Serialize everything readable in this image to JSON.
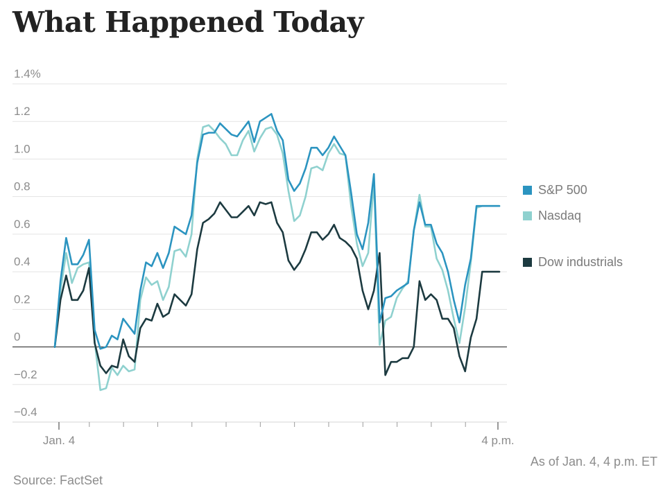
{
  "chart_data": {
    "type": "line",
    "title": "What Happened Today",
    "note": "As of Jan. 4, 4 p.m. ET",
    "source": "Source: FactSet",
    "ylim": [
      -0.4,
      1.4
    ],
    "y_ticks": [
      {
        "value": 1.4,
        "label": "1.4%"
      },
      {
        "value": 1.2,
        "label": "1.2"
      },
      {
        "value": 1.0,
        "label": "1.0"
      },
      {
        "value": 0.8,
        "label": "0.8"
      },
      {
        "value": 0.6,
        "label": "0.6"
      },
      {
        "value": 0.4,
        "label": "0.4"
      },
      {
        "value": 0.2,
        "label": "0.2"
      },
      {
        "value": 0,
        "label": "0"
      },
      {
        "value": -0.2,
        "label": "−0.2"
      },
      {
        "value": -0.4,
        "label": "−0.4"
      }
    ],
    "x_range": [
      0,
      78
    ],
    "x_ticks": [
      {
        "value": 0,
        "label": "Jan. 4"
      },
      {
        "value": 78,
        "label": "4 p.m."
      }
    ],
    "x_minor_ticks": [
      6,
      12,
      18,
      24,
      30,
      36,
      42,
      48,
      54,
      60,
      66,
      72
    ],
    "grid": true,
    "legend_position": "right",
    "series": [
      {
        "name": "Nasdaq",
        "color": "#8fd1cf",
        "x": [
          0,
          1,
          2,
          3,
          4,
          5,
          6,
          7,
          8,
          9,
          10,
          11,
          12,
          13,
          14,
          15,
          16,
          17,
          18,
          19,
          20,
          21,
          22,
          23,
          24,
          25,
          26,
          27,
          28,
          29,
          30,
          31,
          32,
          33,
          34,
          35,
          36,
          37,
          38,
          39,
          40,
          41,
          42,
          43,
          44,
          45,
          46,
          47,
          48,
          49,
          50,
          51,
          52,
          53,
          54,
          55,
          56,
          57,
          58,
          59,
          60,
          61,
          62,
          63,
          64,
          65,
          66,
          67,
          68,
          69,
          70,
          71,
          72,
          73,
          74,
          75,
          76,
          77,
          78
        ],
        "y": [
          0.0,
          0.3,
          0.5,
          0.34,
          0.42,
          0.44,
          0.45,
          0.03,
          -0.23,
          -0.22,
          -0.11,
          -0.15,
          -0.1,
          -0.13,
          -0.12,
          0.25,
          0.37,
          0.33,
          0.35,
          0.25,
          0.32,
          0.51,
          0.52,
          0.48,
          0.6,
          1.0,
          1.17,
          1.18,
          1.15,
          1.11,
          1.08,
          1.02,
          1.02,
          1.1,
          1.15,
          1.04,
          1.11,
          1.16,
          1.17,
          1.13,
          1.03,
          0.83,
          0.67,
          0.7,
          0.8,
          0.95,
          0.96,
          0.94,
          1.03,
          1.08,
          1.03,
          1.02,
          0.75,
          0.55,
          0.43,
          0.5,
          0.88,
          0.01,
          0.14,
          0.16,
          0.26,
          0.31,
          0.35,
          0.62,
          0.81,
          0.64,
          0.64,
          0.47,
          0.41,
          0.3,
          0.15,
          0.02,
          0.21,
          0.45,
          0.74,
          0.75,
          0.75,
          0.75,
          0.75
        ]
      },
      {
        "name": "Dow industrials",
        "color": "#1c3a40",
        "x": [
          0,
          1,
          2,
          3,
          4,
          5,
          6,
          7,
          8,
          9,
          10,
          11,
          12,
          13,
          14,
          15,
          16,
          17,
          18,
          19,
          20,
          21,
          22,
          23,
          24,
          25,
          26,
          27,
          28,
          29,
          30,
          31,
          32,
          33,
          34,
          35,
          36,
          37,
          38,
          39,
          40,
          41,
          42,
          43,
          44,
          45,
          46,
          47,
          48,
          49,
          50,
          51,
          52,
          53,
          54,
          55,
          56,
          57,
          58,
          59,
          60,
          61,
          62,
          63,
          64,
          65,
          66,
          67,
          68,
          69,
          70,
          71,
          72,
          73,
          74,
          75,
          76,
          77,
          78
        ],
        "y": [
          0.0,
          0.25,
          0.38,
          0.25,
          0.25,
          0.3,
          0.42,
          0.02,
          -0.1,
          -0.14,
          -0.1,
          -0.11,
          0.04,
          -0.05,
          -0.08,
          0.1,
          0.15,
          0.14,
          0.23,
          0.16,
          0.18,
          0.28,
          0.25,
          0.22,
          0.28,
          0.52,
          0.66,
          0.68,
          0.71,
          0.77,
          0.73,
          0.69,
          0.69,
          0.72,
          0.75,
          0.7,
          0.77,
          0.76,
          0.77,
          0.66,
          0.61,
          0.46,
          0.41,
          0.45,
          0.52,
          0.61,
          0.61,
          0.57,
          0.6,
          0.65,
          0.58,
          0.56,
          0.53,
          0.47,
          0.3,
          0.2,
          0.3,
          0.5,
          -0.15,
          -0.08,
          -0.08,
          -0.06,
          -0.06,
          0.0,
          0.35,
          0.25,
          0.28,
          0.25,
          0.15,
          0.15,
          0.1,
          -0.05,
          -0.13,
          0.05,
          0.15,
          0.4,
          0.4,
          0.4,
          0.4
        ]
      },
      {
        "name": "S&P 500",
        "color": "#2b94c0",
        "x": [
          0,
          1,
          2,
          3,
          4,
          5,
          6,
          7,
          8,
          9,
          10,
          11,
          12,
          13,
          14,
          15,
          16,
          17,
          18,
          19,
          20,
          21,
          22,
          23,
          24,
          25,
          26,
          27,
          28,
          29,
          30,
          31,
          32,
          33,
          34,
          35,
          36,
          37,
          38,
          39,
          40,
          41,
          42,
          43,
          44,
          45,
          46,
          47,
          48,
          49,
          50,
          51,
          52,
          53,
          54,
          55,
          56,
          57,
          58,
          59,
          60,
          61,
          62,
          63,
          64,
          65,
          66,
          67,
          68,
          69,
          70,
          71,
          72,
          73,
          74,
          75,
          76,
          77,
          78
        ],
        "y": [
          0.0,
          0.35,
          0.58,
          0.44,
          0.44,
          0.49,
          0.57,
          0.09,
          -0.01,
          0.0,
          0.06,
          0.04,
          0.15,
          0.11,
          0.07,
          0.3,
          0.45,
          0.43,
          0.5,
          0.42,
          0.5,
          0.64,
          0.62,
          0.6,
          0.7,
          0.98,
          1.13,
          1.14,
          1.14,
          1.19,
          1.16,
          1.13,
          1.12,
          1.16,
          1.2,
          1.09,
          1.2,
          1.22,
          1.24,
          1.15,
          1.1,
          0.89,
          0.83,
          0.87,
          0.95,
          1.06,
          1.06,
          1.02,
          1.06,
          1.12,
          1.07,
          1.02,
          0.82,
          0.6,
          0.52,
          0.66,
          0.92,
          0.13,
          0.26,
          0.27,
          0.3,
          0.32,
          0.34,
          0.62,
          0.77,
          0.65,
          0.65,
          0.55,
          0.5,
          0.4,
          0.25,
          0.13,
          0.33,
          0.47,
          0.75,
          0.75,
          0.75,
          0.75,
          0.75
        ]
      }
    ],
    "legend": [
      {
        "name": "S&P 500",
        "color": "#2b94c0"
      },
      {
        "name": "Nasdaq",
        "color": "#8fd1cf"
      },
      {
        "name": "Dow industrials",
        "color": "#1c3a40"
      }
    ]
  }
}
